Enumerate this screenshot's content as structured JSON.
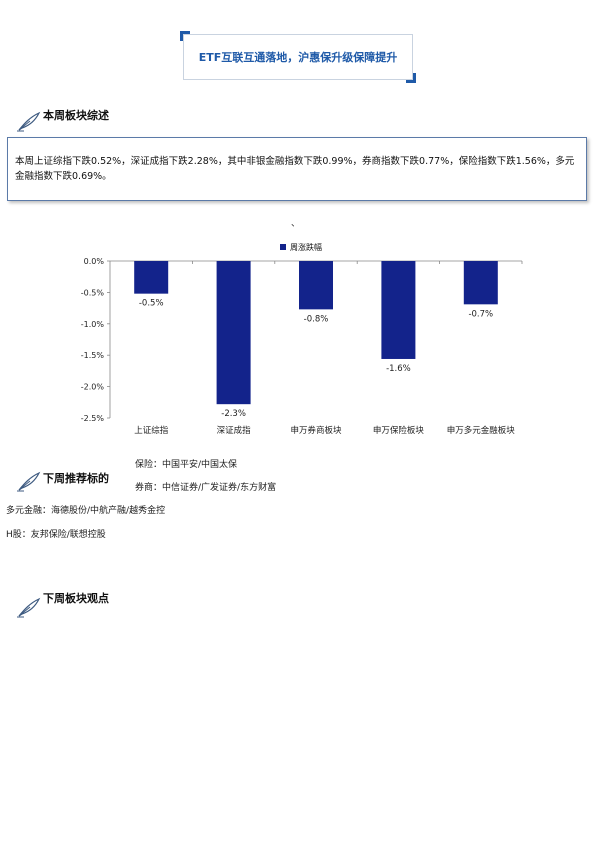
{
  "header": {
    "title": "ETF互联互通落地，沪惠保升级保障提升"
  },
  "sections": {
    "weekly_summary_title": "本周板块综述",
    "weekly_summary_text": "本周上证综指下跌0.52%，深证成指下跌2.28%，其中非银金融指数下跌0.99%，券商指数下跌0.77%，保险指数下跌1.56%，多元金融指数下跌0.69%。",
    "stray_mark": "、",
    "recommend_title": "下周推荐标的",
    "recommend_items": [
      "保险：中国平安/中国太保",
      "券商：中信证券/广发证券/东方财富",
      "多元金融：海德股份/中航产融/越秀金控",
      "H股：友邦保险/联想控股"
    ],
    "outlook_title": "下周板块观点"
  },
  "chart_data": {
    "type": "bar",
    "categories": [
      "上证综指",
      "深证成指",
      "申万券商板块",
      "申万保险板块",
      "申万多元金融板块"
    ],
    "series": [
      {
        "name": "周涨跌幅",
        "values": [
          -0.52,
          -2.28,
          -0.77,
          -1.56,
          -0.69
        ],
        "labels": [
          "-0.5%",
          "-2.3%",
          "-0.8%",
          "-1.6%",
          "-0.7%"
        ]
      }
    ],
    "yticks": [
      "0.0%",
      "-0.5%",
      "-1.0%",
      "-1.5%",
      "-2.0%",
      "-2.5%"
    ],
    "ylim": [
      -2.5,
      0
    ],
    "legend": "top-center",
    "colors": {
      "bar": "#13238b"
    }
  },
  "colors": {
    "accent": "#1f5aa8",
    "box_border": "#5b7aa8"
  }
}
